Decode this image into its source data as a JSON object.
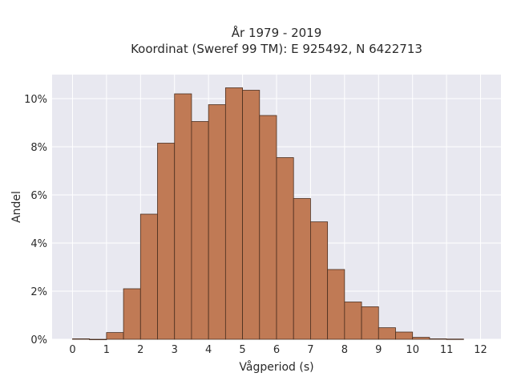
{
  "chart_data": {
    "type": "bar",
    "title": [
      "År 1979 - 2019",
      "Koordinat (Sweref 99 TM): E 925492, N 6422713"
    ],
    "xlabel": "Vågperiod (s)",
    "ylabel": "Andel",
    "xlim": [
      -0.6,
      12.6
    ],
    "ylim": [
      0,
      11
    ],
    "xticks": [
      0,
      1,
      2,
      3,
      4,
      5,
      6,
      7,
      8,
      9,
      10,
      11,
      12
    ],
    "yticks": [
      0,
      2,
      4,
      6,
      8,
      10
    ],
    "ytick_labels": [
      "0%",
      "2%",
      "4%",
      "6%",
      "8%",
      "10%"
    ],
    "bin_width": 0.5,
    "bins": [
      {
        "x0": 0.0,
        "value": 0.02
      },
      {
        "x0": 0.5,
        "value": 0.0
      },
      {
        "x0": 1.0,
        "value": 0.28
      },
      {
        "x0": 1.5,
        "value": 2.1
      },
      {
        "x0": 2.0,
        "value": 5.2
      },
      {
        "x0": 2.5,
        "value": 8.15
      },
      {
        "x0": 3.0,
        "value": 10.2
      },
      {
        "x0": 3.5,
        "value": 9.05
      },
      {
        "x0": 4.0,
        "value": 9.75
      },
      {
        "x0": 4.5,
        "value": 10.45
      },
      {
        "x0": 5.0,
        "value": 10.35
      },
      {
        "x0": 5.5,
        "value": 9.3
      },
      {
        "x0": 6.0,
        "value": 7.55
      },
      {
        "x0": 6.5,
        "value": 5.85
      },
      {
        "x0": 7.0,
        "value": 4.88
      },
      {
        "x0": 7.5,
        "value": 2.9
      },
      {
        "x0": 8.0,
        "value": 1.55
      },
      {
        "x0": 8.5,
        "value": 1.35
      },
      {
        "x0": 9.0,
        "value": 0.48
      },
      {
        "x0": 9.5,
        "value": 0.3
      },
      {
        "x0": 10.0,
        "value": 0.08
      },
      {
        "x0": 10.5,
        "value": 0.02
      },
      {
        "x0": 11.0,
        "value": 0.01
      }
    ],
    "grid": true,
    "colors": {
      "bar_fill": "#c07a55",
      "bar_edge": "#4a2e1f",
      "plot_bg": "#e8e8f0",
      "grid": "#ffffff",
      "text": "#2a2a2a"
    }
  }
}
